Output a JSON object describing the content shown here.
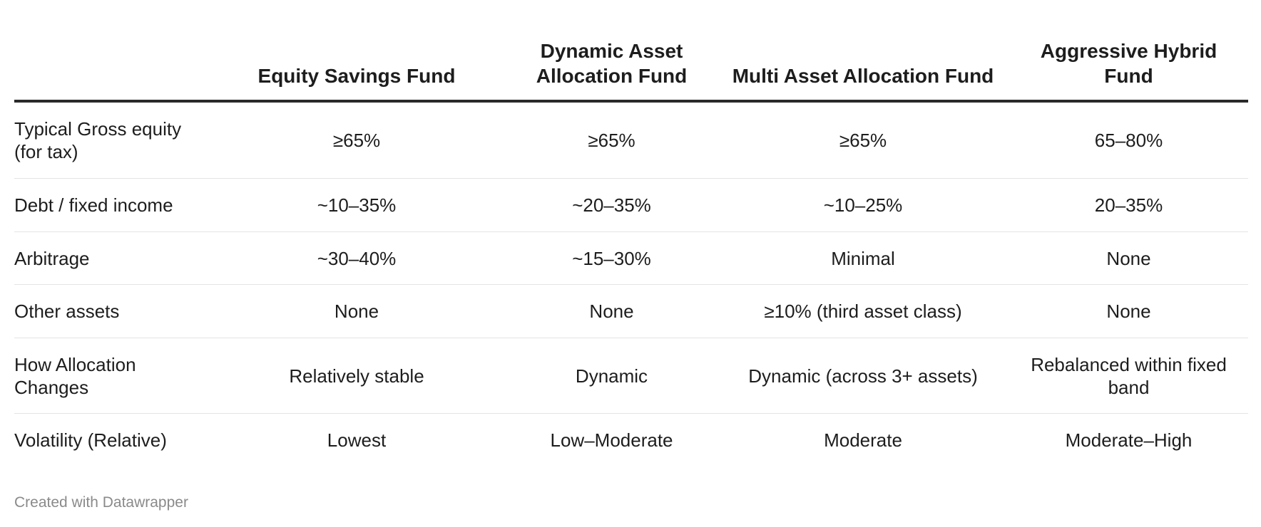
{
  "table": {
    "headers": [
      "",
      "Equity Savings Fund",
      "Dynamic Asset Allocation Fund",
      "Multi Asset Allocation Fund",
      "Aggressive Hybrid Fund"
    ],
    "rows": [
      [
        "Typical Gross equity (for tax)",
        "≥65%",
        "≥65%",
        "≥65%",
        "65–80%"
      ],
      [
        "Debt / fixed income",
        "~10–35%",
        "~20–35%",
        "~10–25%",
        "20–35%"
      ],
      [
        "Arbitrage",
        "~30–40%",
        "~15–30%",
        "Minimal",
        "None"
      ],
      [
        "Other assets",
        "None",
        "None",
        "≥10% (third asset class)",
        "None"
      ],
      [
        "How Allocation Changes",
        "Relatively stable",
        "Dynamic",
        "Dynamic (across 3+ assets)",
        "Rebalanced within fixed band"
      ],
      [
        "Volatility (Relative)",
        "Lowest",
        "Low–Moderate",
        "Moderate",
        "Moderate–High"
      ]
    ]
  },
  "footer": {
    "credit": "Created with Datawrapper"
  }
}
